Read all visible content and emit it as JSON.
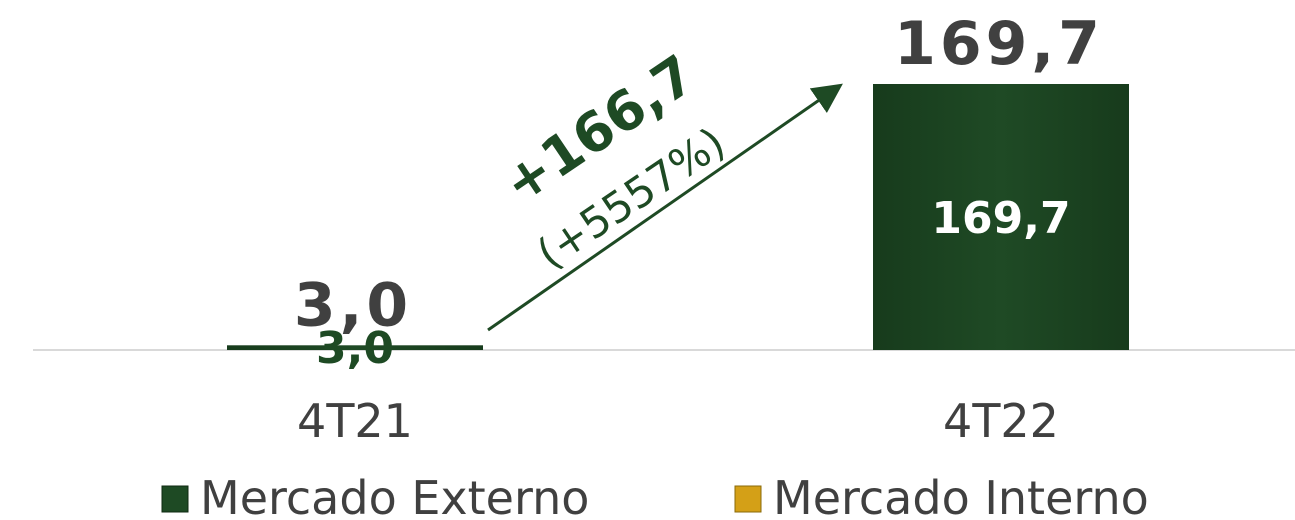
{
  "chart_data": {
    "type": "bar",
    "stacked": true,
    "categories": [
      "4T21",
      "4T22"
    ],
    "series": [
      {
        "name": "Mercado Externo",
        "color": "#1e4a24",
        "values": [
          3.0,
          169.7
        ],
        "labels": [
          "3,0",
          "169,7"
        ]
      },
      {
        "name": "Mercado Interno",
        "color": "#d4a017",
        "values": [
          0,
          0
        ],
        "labels": [
          "",
          ""
        ]
      }
    ],
    "totals": [
      3.0,
      169.7
    ],
    "total_labels": [
      "3,0",
      "169,7"
    ],
    "ylim": [
      0,
      169.7
    ],
    "legend_position": "bottom",
    "grid": false,
    "annotation": {
      "change_label": "+166,7",
      "percent_label": "(+5557%)",
      "color": "#1e4a24"
    }
  }
}
